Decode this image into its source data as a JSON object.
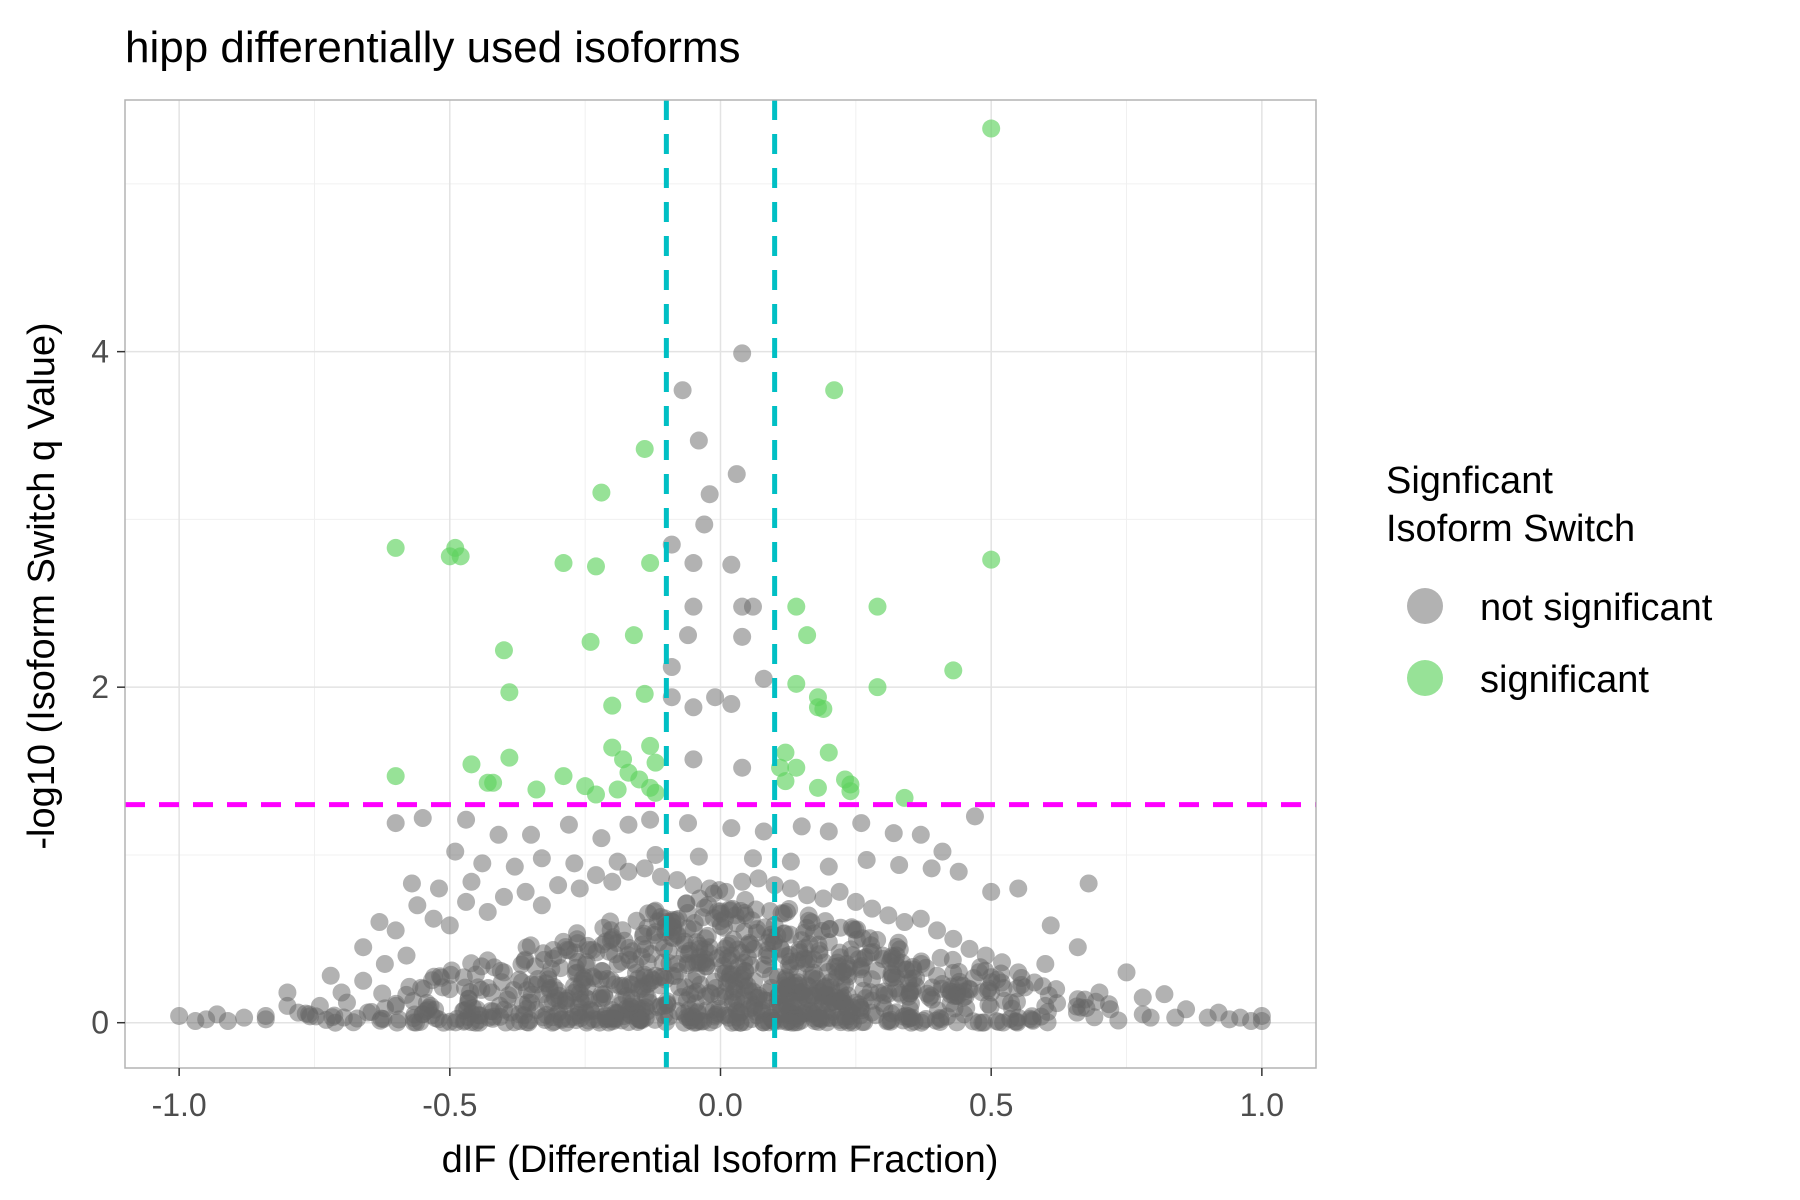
{
  "chart_data": {
    "type": "scatter",
    "title": "hipp differentially used isoforms",
    "xlabel": "dIF (Differential Isoform Fraction)",
    "ylabel": "-log10 (Isoform Switch q Value)",
    "xlim": [
      -1.1,
      1.1
    ],
    "ylim": [
      -0.27,
      5.5
    ],
    "x_ticks": [
      -1.0,
      -0.5,
      0.0,
      0.5,
      1.0
    ],
    "x_tick_labels": [
      "-1.0",
      "-0.5",
      "0.0",
      "0.5",
      "1.0"
    ],
    "y_ticks": [
      0,
      2,
      4
    ],
    "y_tick_labels": [
      "0",
      "2",
      "4"
    ],
    "grid": true,
    "reference_lines": [
      {
        "orientation": "vertical",
        "value": -0.1,
        "color": "#00BFC4",
        "style": "dashed"
      },
      {
        "orientation": "vertical",
        "value": 0.1,
        "color": "#00BFC4",
        "style": "dashed"
      },
      {
        "orientation": "horizontal",
        "value": 1.3,
        "color": "#FF00FF",
        "style": "dashed"
      }
    ],
    "legend": {
      "title": "Signficant\nIsoform Switch",
      "title_lines": [
        "Signficant",
        "Isoform Switch"
      ],
      "position": "right",
      "entries": [
        "not significant",
        "significant"
      ]
    },
    "colors": {
      "not_significant": "#666666",
      "significant": "#5FD35F"
    },
    "series": [
      {
        "name": "not significant",
        "points": [
          [
            0.04,
            3.99
          ],
          [
            -0.07,
            3.77
          ],
          [
            -0.04,
            3.47
          ],
          [
            0.03,
            3.27
          ],
          [
            -0.02,
            3.15
          ],
          [
            -0.03,
            2.97
          ],
          [
            -0.09,
            2.85
          ],
          [
            -0.05,
            2.74
          ],
          [
            0.02,
            2.73
          ],
          [
            -0.05,
            2.48
          ],
          [
            0.04,
            2.48
          ],
          [
            0.06,
            2.48
          ],
          [
            -0.06,
            2.31
          ],
          [
            0.04,
            2.3
          ],
          [
            -0.09,
            2.12
          ],
          [
            0.08,
            2.05
          ],
          [
            -0.09,
            1.94
          ],
          [
            -0.01,
            1.94
          ],
          [
            0.02,
            1.9
          ],
          [
            -0.05,
            1.88
          ],
          [
            -0.05,
            1.57
          ],
          [
            0.04,
            1.52
          ],
          [
            0.47,
            1.23
          ],
          [
            -0.6,
            1.19
          ],
          [
            -0.55,
            1.22
          ],
          [
            -0.47,
            1.21
          ],
          [
            -0.41,
            1.12
          ],
          [
            -0.35,
            1.12
          ],
          [
            -0.28,
            1.18
          ],
          [
            -0.22,
            1.1
          ],
          [
            -0.17,
            1.18
          ],
          [
            -0.13,
            1.21
          ],
          [
            -0.06,
            1.19
          ],
          [
            0.02,
            1.16
          ],
          [
            0.08,
            1.14
          ],
          [
            0.15,
            1.17
          ],
          [
            0.2,
            1.14
          ],
          [
            0.26,
            1.19
          ],
          [
            0.32,
            1.13
          ],
          [
            0.37,
            1.12
          ],
          [
            0.41,
            1.02
          ],
          [
            -0.49,
            1.02
          ],
          [
            -0.44,
            0.95
          ],
          [
            -0.38,
            0.93
          ],
          [
            -0.33,
            0.98
          ],
          [
            -0.27,
            0.95
          ],
          [
            -0.19,
            0.96
          ],
          [
            -0.12,
            1.0
          ],
          [
            -0.04,
            0.99
          ],
          [
            0.06,
            0.98
          ],
          [
            0.13,
            0.96
          ],
          [
            0.2,
            0.93
          ],
          [
            0.27,
            0.97
          ],
          [
            0.33,
            0.94
          ],
          [
            0.39,
            0.92
          ],
          [
            0.44,
            0.9
          ],
          [
            0.68,
            0.83
          ],
          [
            -0.57,
            0.83
          ],
          [
            -0.52,
            0.8
          ],
          [
            -0.46,
            0.84
          ],
          [
            0.5,
            0.78
          ],
          [
            0.55,
            0.8
          ],
          [
            0.61,
            0.58
          ],
          [
            0.66,
            0.45
          ],
          [
            0.75,
            0.3
          ],
          [
            0.6,
            0.35
          ],
          [
            0.7,
            0.18
          ],
          [
            0.78,
            0.15
          ],
          [
            0.82,
            0.17
          ],
          [
            0.86,
            0.08
          ],
          [
            0.9,
            0.03
          ],
          [
            0.94,
            0.02
          ],
          [
            0.98,
            0.01
          ],
          [
            1.0,
            0.01
          ],
          [
            1.0,
            0.04
          ],
          [
            0.96,
            0.03
          ],
          [
            0.92,
            0.06
          ],
          [
            -1.0,
            0.04
          ],
          [
            -0.97,
            0.01
          ],
          [
            -0.95,
            0.02
          ],
          [
            -0.93,
            0.05
          ],
          [
            -0.91,
            0.01
          ],
          [
            -0.88,
            0.03
          ],
          [
            -0.84,
            0.04
          ],
          [
            -0.8,
            0.1
          ],
          [
            -0.8,
            0.18
          ],
          [
            -0.76,
            0.05
          ],
          [
            -0.72,
            0.28
          ],
          [
            -0.69,
            0.12
          ],
          [
            -0.66,
            0.45
          ],
          [
            -0.63,
            0.6
          ],
          [
            -0.6,
            0.55
          ],
          [
            -0.56,
            0.7
          ],
          [
            -0.53,
            0.62
          ],
          [
            -0.5,
            0.58
          ],
          [
            -0.47,
            0.72
          ],
          [
            -0.43,
            0.66
          ],
          [
            -0.4,
            0.75
          ],
          [
            -0.36,
            0.78
          ],
          [
            -0.33,
            0.7
          ],
          [
            -0.3,
            0.82
          ],
          [
            -0.26,
            0.8
          ],
          [
            -0.23,
            0.88
          ],
          [
            -0.2,
            0.84
          ],
          [
            -0.17,
            0.9
          ],
          [
            -0.14,
            0.92
          ],
          [
            -0.11,
            0.87
          ],
          [
            -0.08,
            0.85
          ],
          [
            -0.05,
            0.82
          ],
          [
            -0.02,
            0.8
          ],
          [
            0.01,
            0.78
          ],
          [
            0.04,
            0.84
          ],
          [
            0.07,
            0.86
          ],
          [
            0.1,
            0.82
          ],
          [
            0.13,
            0.8
          ],
          [
            0.16,
            0.76
          ],
          [
            0.19,
            0.74
          ],
          [
            0.22,
            0.78
          ],
          [
            0.25,
            0.72
          ],
          [
            0.28,
            0.68
          ],
          [
            0.31,
            0.64
          ],
          [
            0.34,
            0.6
          ],
          [
            0.37,
            0.62
          ],
          [
            0.4,
            0.55
          ],
          [
            0.43,
            0.5
          ],
          [
            0.46,
            0.44
          ],
          [
            0.49,
            0.4
          ],
          [
            0.52,
            0.36
          ],
          [
            0.55,
            0.3
          ],
          [
            0.58,
            0.24
          ],
          [
            0.62,
            0.2
          ],
          [
            0.66,
            0.14
          ],
          [
            0.72,
            0.08
          ],
          [
            0.78,
            0.05
          ],
          [
            0.84,
            0.03
          ],
          [
            -0.58,
            0.4
          ],
          [
            -0.62,
            0.35
          ],
          [
            -0.66,
            0.25
          ],
          [
            -0.7,
            0.18
          ],
          [
            -0.74,
            0.1
          ],
          [
            -0.78,
            0.06
          ],
          [
            -0.84,
            0.02
          ],
          [
            -0.6,
            0.1
          ],
          [
            -0.5,
            0.2
          ],
          [
            -0.4,
            0.3
          ],
          [
            -0.3,
            0.4
          ],
          [
            -0.2,
            0.5
          ],
          [
            -0.1,
            0.6
          ],
          [
            0.0,
            0.65
          ],
          [
            0.1,
            0.58
          ],
          [
            0.2,
            0.48
          ],
          [
            0.3,
            0.38
          ],
          [
            0.4,
            0.28
          ],
          [
            0.5,
            0.18
          ],
          [
            0.6,
            0.1
          ],
          [
            -0.55,
            0.05
          ],
          [
            -0.45,
            0.08
          ],
          [
            -0.35,
            0.12
          ],
          [
            -0.25,
            0.15
          ],
          [
            -0.15,
            0.2
          ],
          [
            -0.05,
            0.25
          ],
          [
            0.05,
            0.22
          ],
          [
            0.15,
            0.18
          ],
          [
            0.25,
            0.12
          ],
          [
            0.35,
            0.08
          ],
          [
            0.45,
            0.05
          ],
          [
            0.55,
            0.03
          ],
          [
            -0.02,
            0.45
          ],
          [
            0.02,
            0.4
          ],
          [
            -0.08,
            0.35
          ],
          [
            0.08,
            0.32
          ],
          [
            -0.12,
            0.28
          ],
          [
            0.12,
            0.26
          ],
          [
            -0.18,
            0.22
          ],
          [
            0.18,
            0.2
          ]
        ]
      },
      {
        "name": "significant",
        "points": [
          [
            0.5,
            5.33
          ],
          [
            0.21,
            3.77
          ],
          [
            -0.14,
            3.42
          ],
          [
            -0.22,
            3.16
          ],
          [
            -0.6,
            2.83
          ],
          [
            -0.49,
            2.83
          ],
          [
            -0.5,
            2.78
          ],
          [
            -0.48,
            2.78
          ],
          [
            -0.29,
            2.74
          ],
          [
            -0.23,
            2.72
          ],
          [
            -0.13,
            2.74
          ],
          [
            0.5,
            2.76
          ],
          [
            0.14,
            2.48
          ],
          [
            0.29,
            2.48
          ],
          [
            -0.24,
            2.27
          ],
          [
            -0.16,
            2.31
          ],
          [
            0.16,
            2.31
          ],
          [
            -0.4,
            2.22
          ],
          [
            0.43,
            2.1
          ],
          [
            0.14,
            2.02
          ],
          [
            0.29,
            2.0
          ],
          [
            -0.39,
            1.97
          ],
          [
            -0.14,
            1.96
          ],
          [
            0.18,
            1.94
          ],
          [
            -0.2,
            1.89
          ],
          [
            0.18,
            1.88
          ],
          [
            0.19,
            1.87
          ],
          [
            -0.13,
            1.65
          ],
          [
            -0.2,
            1.64
          ],
          [
            0.12,
            1.61
          ],
          [
            0.2,
            1.61
          ],
          [
            -0.39,
            1.58
          ],
          [
            -0.18,
            1.57
          ],
          [
            -0.12,
            1.55
          ],
          [
            -0.46,
            1.54
          ],
          [
            0.11,
            1.52
          ],
          [
            0.14,
            1.52
          ],
          [
            -0.17,
            1.49
          ],
          [
            -0.6,
            1.47
          ],
          [
            -0.29,
            1.47
          ],
          [
            -0.15,
            1.45
          ],
          [
            0.23,
            1.45
          ],
          [
            0.12,
            1.44
          ],
          [
            -0.43,
            1.43
          ],
          [
            -0.42,
            1.43
          ],
          [
            0.24,
            1.42
          ],
          [
            -0.25,
            1.41
          ],
          [
            -0.13,
            1.4
          ],
          [
            0.18,
            1.4
          ],
          [
            -0.34,
            1.39
          ],
          [
            -0.19,
            1.39
          ],
          [
            -0.12,
            1.37
          ],
          [
            0.24,
            1.38
          ],
          [
            0.34,
            1.34
          ],
          [
            -0.23,
            1.36
          ]
        ]
      }
    ]
  }
}
